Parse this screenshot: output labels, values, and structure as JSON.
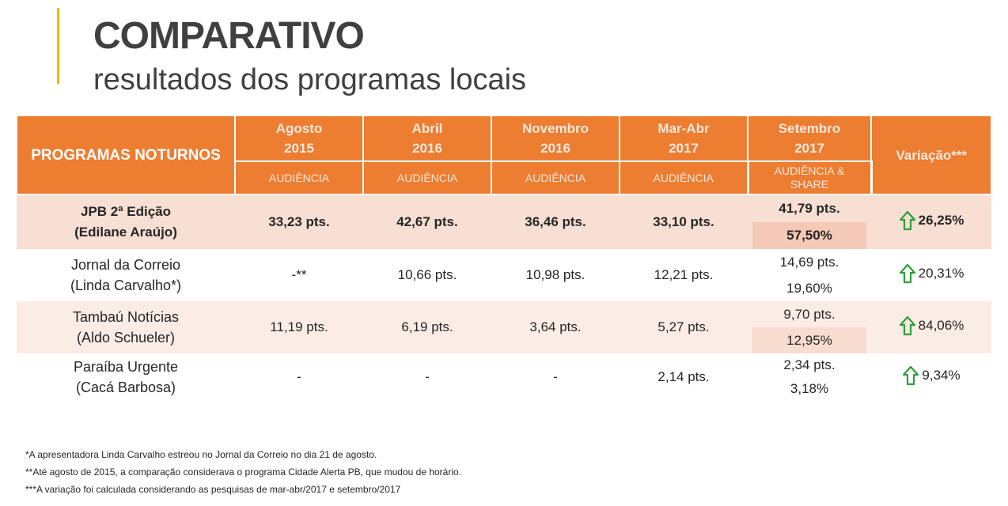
{
  "header": {
    "title": "COMPARATIVO",
    "subtitle": "resultados dos programas locais"
  },
  "table": {
    "programs_header": "PROGRAMAS NOTURNOS",
    "variation_header": "Variação***",
    "periods": [
      {
        "label_line1": "Agosto",
        "label_line2": "2015",
        "metric": "AUDIÊNCIA"
      },
      {
        "label_line1": "Abril",
        "label_line2": "2016",
        "metric": "AUDIÊNCIA"
      },
      {
        "label_line1": "Novembro",
        "label_line2": "2016",
        "metric": "AUDIÊNCIA"
      },
      {
        "label_line1": "Mar-Abr",
        "label_line2": "2017",
        "metric": "AUDIÊNCIA"
      },
      {
        "label_line1": "Setembro",
        "label_line2": "2017",
        "metric_line1": "AUDIÊNCIA &",
        "metric_line2": "SHARE"
      }
    ],
    "rows": [
      {
        "name": "JPB 2ª Edição",
        "host": "(Edilane Araújo)",
        "values": [
          "33,23 pts.",
          "42,67 pts.",
          "36,46 pts.",
          "33,10 pts."
        ],
        "sep_audience": "41,79 pts.",
        "sep_share": "57,50%",
        "variation": "26,25%"
      },
      {
        "name": "Jornal da Correio",
        "host": "(Linda Carvalho*)",
        "values": [
          "-**",
          "10,66 pts.",
          "10,98 pts.",
          "12,21 pts."
        ],
        "sep_audience": "14,69 pts.",
        "sep_share": "19,60%",
        "variation": "20,31%"
      },
      {
        "name": "Tambaú Notícias",
        "host": "(Aldo Schueler)",
        "values": [
          "11,19 pts.",
          "6,19 pts.",
          "3,64 pts.",
          "5,27 pts."
        ],
        "sep_audience": "9,70 pts.",
        "sep_share": "12,95%",
        "variation": "84,06%"
      },
      {
        "name": "Paraíba Urgente",
        "host": "(Cacá Barbosa)",
        "values": [
          "-",
          "-",
          "-",
          "2,14 pts."
        ],
        "sep_audience": "2,34 pts.",
        "sep_share": "3,18%",
        "variation": "9,34%"
      }
    ]
  },
  "footnotes": [
    "*A apresentadora Linda Carvalho estreou no Jornal da Correio no dia 21 de agosto.",
    "**Até agosto de 2015, a comparação considerava o programa Cidade Alerta PB, que mudou de horário.",
    "***A variação foi calculada considerando as pesquisas de mar-abr/2017 e setembro/2017"
  ],
  "colors": {
    "accent": "#f2b705",
    "header_orange": "#ed7d31",
    "up_arrow": "#2e9e3a"
  },
  "icons": {
    "variation": "up-arrow-icon"
  }
}
